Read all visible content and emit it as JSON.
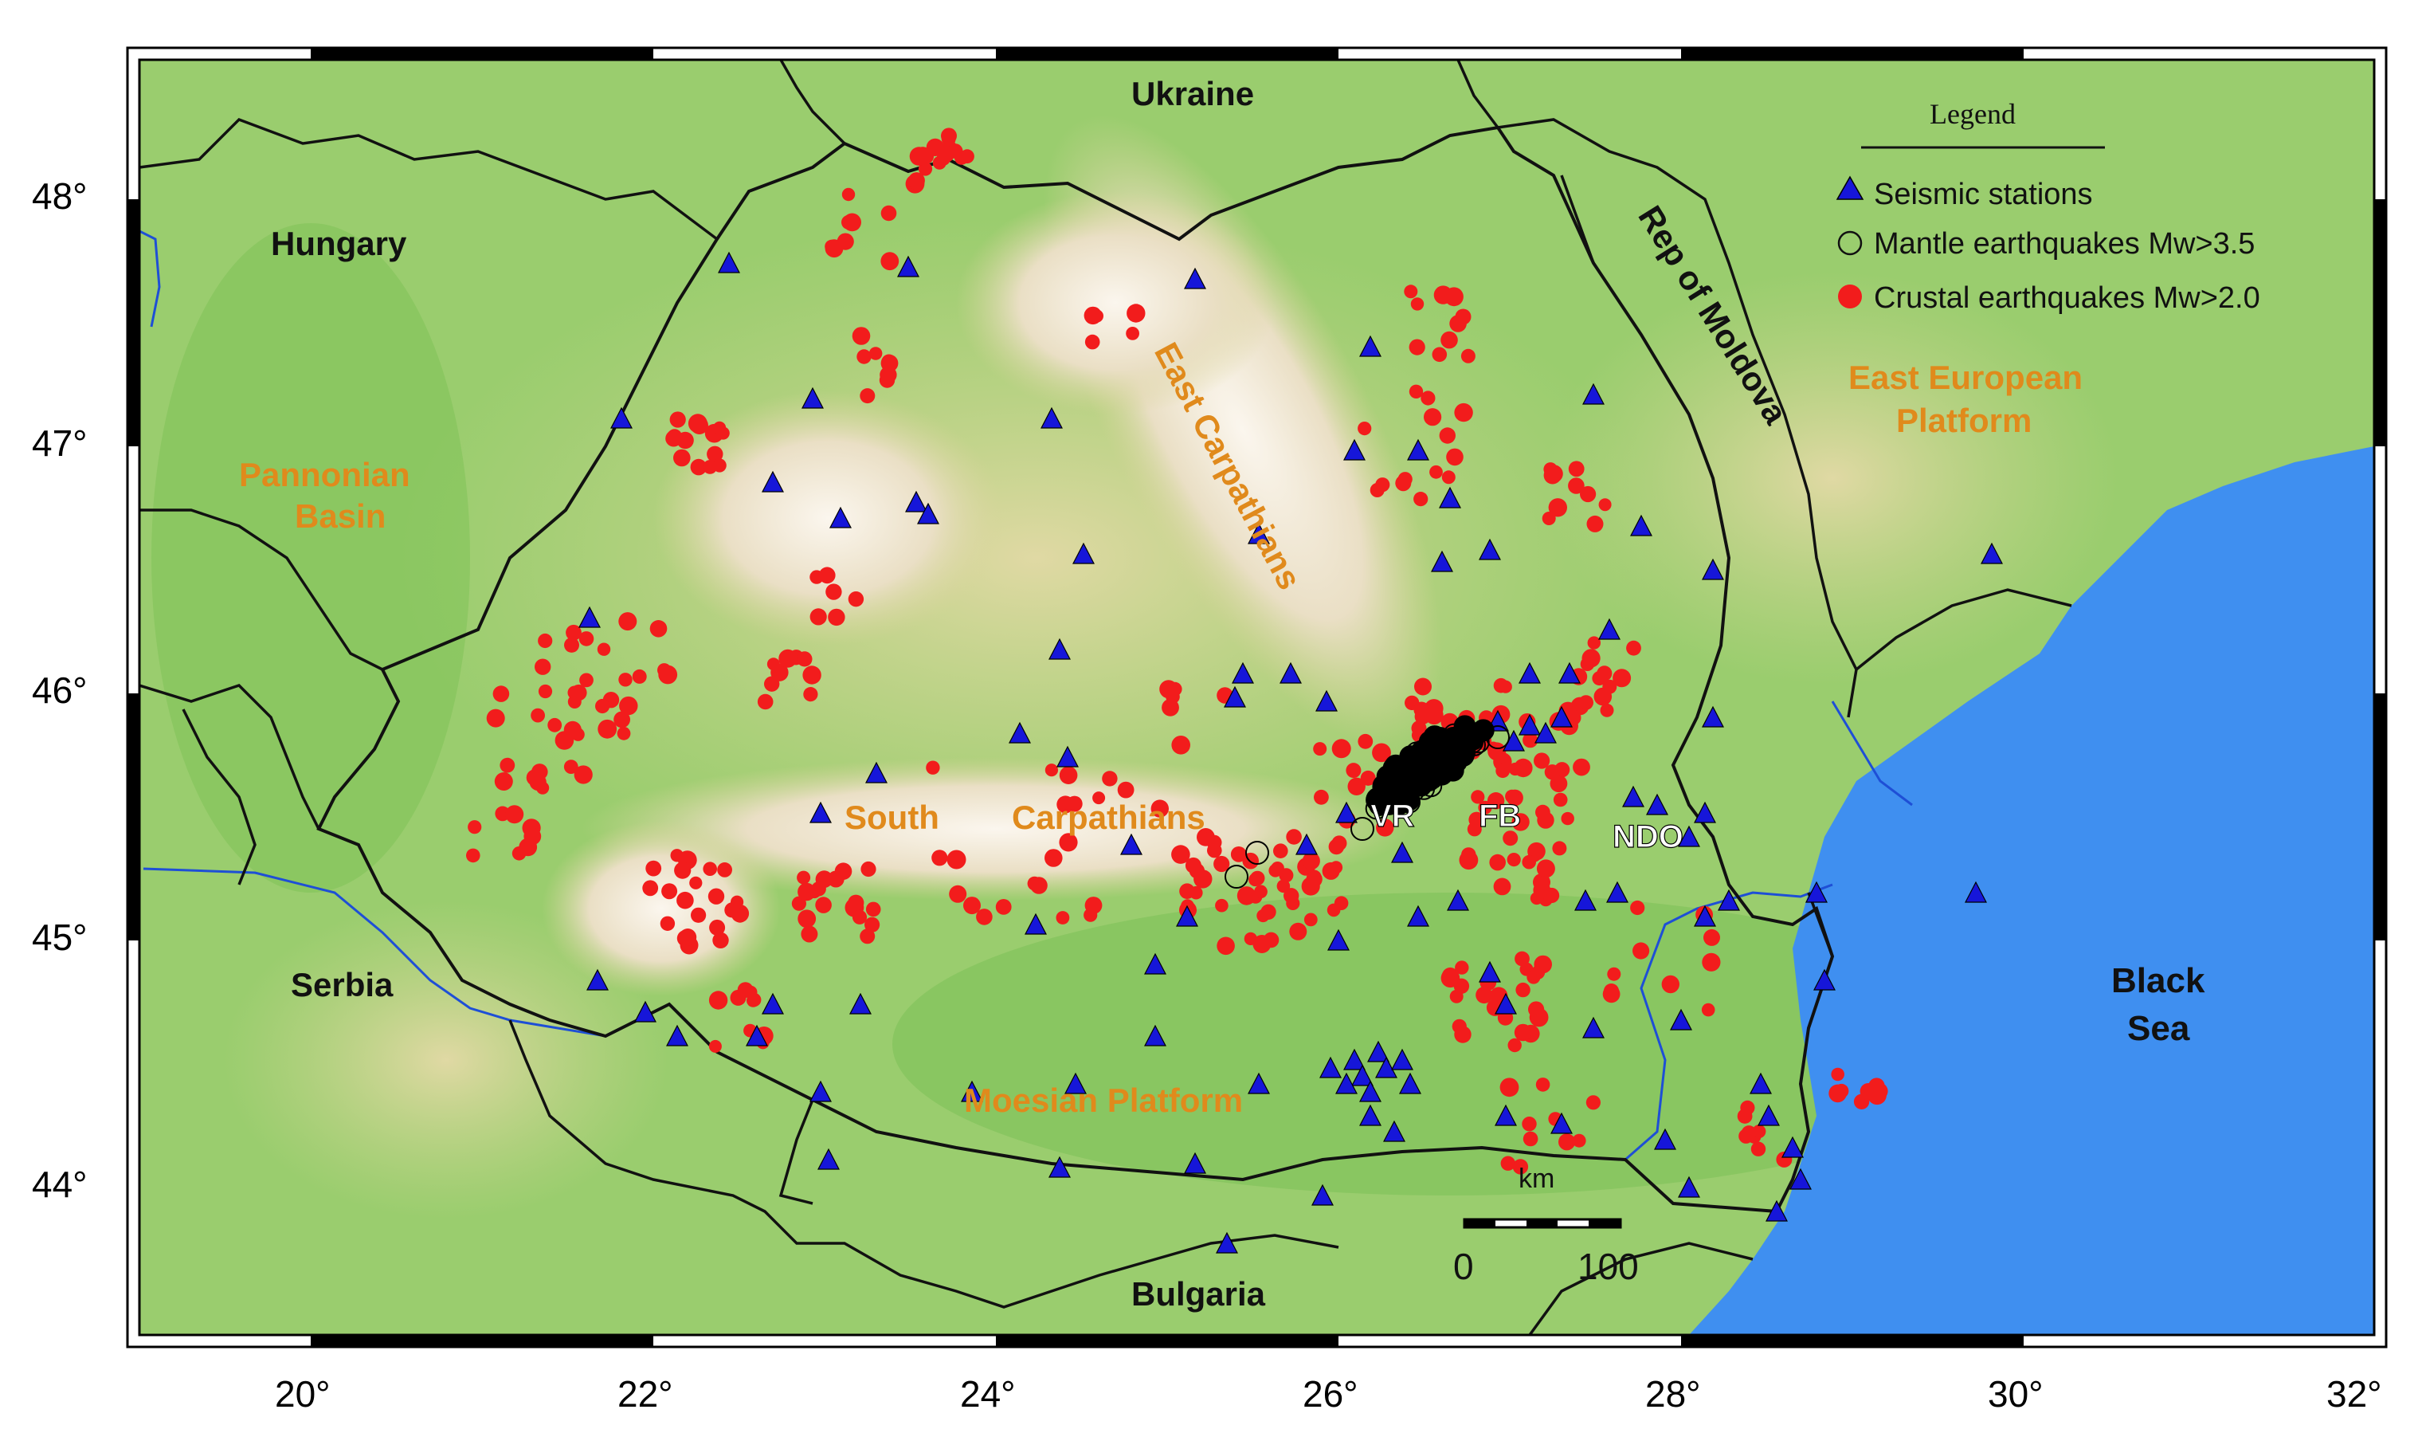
{
  "map": {
    "x_ticks": [
      "20°",
      "22°",
      "24°",
      "26°",
      "28°",
      "30°",
      "32°"
    ],
    "y_ticks": [
      "48°",
      "47°",
      "46°",
      "45°",
      "44°"
    ],
    "countries": {
      "ukraine": "Ukraine",
      "hungary": "Hungary",
      "serbia": "Serbia",
      "bulgaria": "Bulgaria",
      "moldova": "Rep of Moldova"
    },
    "regions": {
      "pannonian_1": "Pannonian",
      "pannonian_2": "Basin",
      "east_carpathians": "East Carpathians",
      "south_carpathians_1": "South",
      "south_carpathians_2": "Carpathians",
      "moesian": "Moesian Platform",
      "east_european_1": "East European",
      "east_european_2": "Platform"
    },
    "sea": {
      "line1": "Black",
      "line2": "Sea"
    },
    "sites": {
      "vr": "VR",
      "fb": "FB",
      "ndo": "NDO"
    },
    "legend": {
      "title": "Legend",
      "stations": "Seismic stations",
      "mantle": "Mantle earthquakes Mw>3.5",
      "crustal": "Crustal earthquakes Mw>2.0"
    },
    "scale_bar": {
      "unit": "km",
      "zero": "0",
      "hundred": "100"
    },
    "colors": {
      "station": "#1616d9",
      "crustal": "#f21c1c",
      "mantle": "#000000",
      "sea": "#3f8ff0",
      "lowland": "#8dc86a",
      "upland": "#d9d49a",
      "mountain": "#f4ead8",
      "orange_label": "#e08a1c"
    }
  }
}
